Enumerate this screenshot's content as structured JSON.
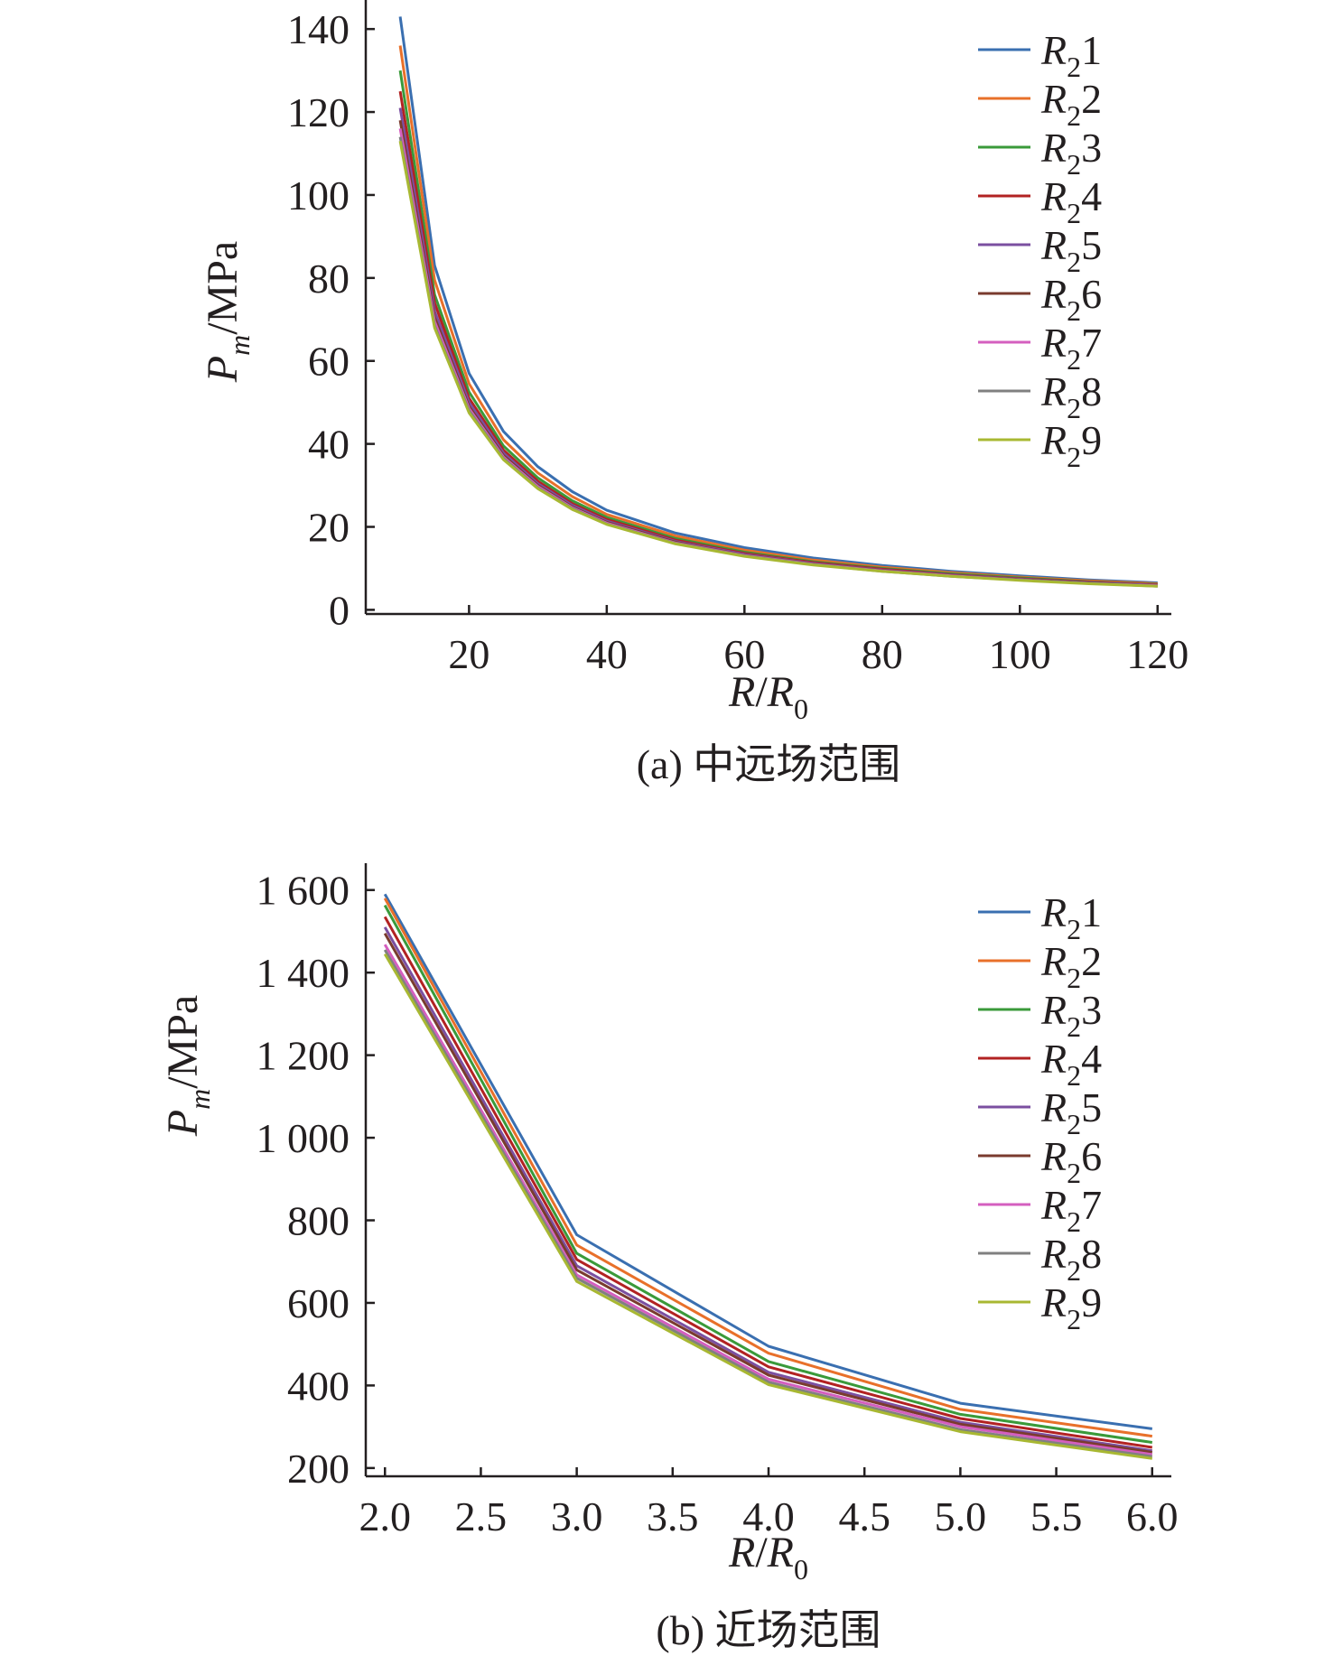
{
  "chart_data": [
    {
      "type": "line",
      "caption": "(a) 中远场范围",
      "xlabel": "R/R0",
      "ylabel": "Pm/MPa",
      "xlim": [
        5,
        122
      ],
      "ylim": [
        -1,
        147
      ],
      "x_ticks": [
        20,
        40,
        60,
        80,
        100,
        120
      ],
      "x_tick_labels": [
        "20",
        "40",
        "60",
        "80",
        "100",
        "120"
      ],
      "y_ticks": [
        0,
        20,
        40,
        60,
        80,
        100,
        120,
        140
      ],
      "y_tick_labels": [
        "0",
        "20",
        "40",
        "60",
        "80",
        "100",
        "120",
        "140"
      ],
      "legend_position": "top-right",
      "x": [
        10,
        15,
        20,
        25,
        30,
        35,
        40,
        50,
        60,
        70,
        80,
        90,
        100,
        110,
        120
      ],
      "series": [
        {
          "name": "R21",
          "color": "#3a6fb0",
          "values": [
            143,
            83,
            57,
            43,
            34.5,
            28.5,
            24,
            18.5,
            15,
            12.5,
            10.7,
            9.3,
            8.2,
            7.2,
            6.5
          ]
        },
        {
          "name": "R22",
          "color": "#e8702a",
          "values": [
            136,
            79.5,
            54.5,
            41,
            33,
            27.3,
            23,
            17.8,
            14.4,
            12,
            10.3,
            9,
            7.9,
            7,
            6.3
          ]
        },
        {
          "name": "R23",
          "color": "#3a9a3a",
          "values": [
            130,
            76,
            52.5,
            39.5,
            31.8,
            26.3,
            22.3,
            17.2,
            13.9,
            11.6,
            10,
            8.7,
            7.7,
            6.8,
            6.1
          ]
        },
        {
          "name": "R24",
          "color": "#b22222",
          "values": [
            125,
            74,
            51,
            38.5,
            31,
            25.6,
            21.8,
            16.8,
            13.6,
            11.4,
            9.8,
            8.5,
            7.5,
            6.7,
            6
          ]
        },
        {
          "name": "R25",
          "color": "#7b4fa0",
          "values": [
            121,
            72,
            50,
            37.8,
            30.4,
            25.2,
            21.4,
            16.5,
            13.4,
            11.2,
            9.6,
            8.4,
            7.4,
            6.6,
            5.9
          ]
        },
        {
          "name": "R26",
          "color": "#7a3b2e",
          "values": [
            118,
            70.5,
            49,
            37.2,
            30,
            24.8,
            21.1,
            16.3,
            13.2,
            11.1,
            9.5,
            8.3,
            7.3,
            6.5,
            5.8
          ]
        },
        {
          "name": "R27",
          "color": "#d45fbf",
          "values": [
            116,
            69.5,
            48.5,
            36.8,
            29.7,
            24.6,
            20.9,
            16.1,
            13.1,
            11,
            9.4,
            8.2,
            7.2,
            6.4,
            5.8
          ]
        },
        {
          "name": "R28",
          "color": "#808080",
          "values": [
            114,
            68.5,
            48,
            36.5,
            29.4,
            24.4,
            20.7,
            16,
            13,
            10.9,
            9.3,
            8.1,
            7.2,
            6.4,
            5.7
          ]
        },
        {
          "name": "R29",
          "color": "#a8b832",
          "values": [
            113,
            68,
            47.5,
            36.2,
            29.2,
            24.2,
            20.6,
            15.9,
            12.9,
            10.8,
            9.3,
            8.1,
            7.1,
            6.3,
            5.7
          ]
        }
      ]
    },
    {
      "type": "line",
      "caption": "(b) 近场范围",
      "xlabel": "R/R0",
      "ylabel": "Pm/MPa",
      "xlim": [
        1.9,
        6.1
      ],
      "ylim": [
        180,
        1665
      ],
      "x_ticks": [
        2.0,
        2.5,
        3.0,
        3.5,
        4.0,
        4.5,
        5.0,
        5.5,
        6.0
      ],
      "x_tick_labels": [
        "2.0",
        "2.5",
        "3.0",
        "3.5",
        "4.0",
        "4.5",
        "5.0",
        "5.5",
        "6.0"
      ],
      "y_ticks": [
        200,
        400,
        600,
        800,
        1000,
        1200,
        1400,
        1600
      ],
      "y_tick_labels": [
        "200",
        "400",
        "600",
        "800",
        "1 000",
        "1 200",
        "1 400",
        "1 600"
      ],
      "legend_position": "top-right",
      "x": [
        2,
        3,
        4,
        5,
        6
      ],
      "series": [
        {
          "name": "R21",
          "color": "#3a6fb0",
          "values": [
            1590,
            765,
            495,
            357,
            295
          ]
        },
        {
          "name": "R22",
          "color": "#e8702a",
          "values": [
            1580,
            740,
            478,
            342,
            277
          ]
        },
        {
          "name": "R23",
          "color": "#3a9a3a",
          "values": [
            1563,
            720,
            458,
            330,
            262
          ]
        },
        {
          "name": "R24",
          "color": "#b22222",
          "values": [
            1535,
            705,
            445,
            320,
            250
          ]
        },
        {
          "name": "R25",
          "color": "#7b4fa0",
          "values": [
            1510,
            690,
            432,
            311,
            242
          ]
        },
        {
          "name": "R26",
          "color": "#7a3b2e",
          "values": [
            1495,
            680,
            425,
            306,
            238
          ]
        },
        {
          "name": "R27",
          "color": "#d45fbf",
          "values": [
            1468,
            668,
            415,
            300,
            233
          ]
        },
        {
          "name": "R28",
          "color": "#808080",
          "values": [
            1455,
            660,
            408,
            293,
            228
          ]
        },
        {
          "name": "R29",
          "color": "#a8b832",
          "values": [
            1445,
            652,
            402,
            288,
            223
          ]
        }
      ]
    }
  ]
}
